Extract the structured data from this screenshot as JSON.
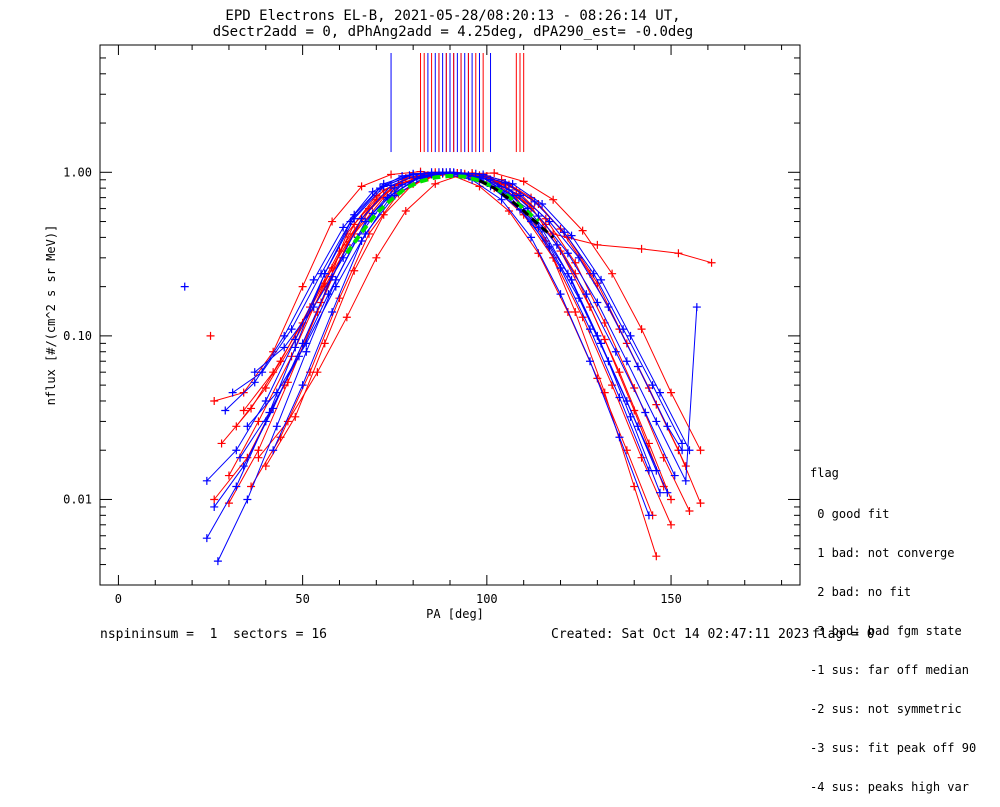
{
  "title_line1": "EPD Electrons EL-B, 2021-05-28/08:20:13 - 08:26:14 UT,",
  "title_line2": "dSectr2add = 0, dPhAng2add = 4.25deg, dPA290_est=  -0.0deg",
  "legend": {
    "title": "flag",
    "items": [
      " 0 good fit",
      " 1 bad: not converge",
      " 2 bad: no fit",
      " 3 bad: bad fgm state",
      "-1 sus: far off median",
      "-2 sus: not symmetric",
      "-3 sus: fit peak off 90",
      "-4 sus: peaks high var"
    ]
  },
  "footer": {
    "left": "nspininsum =  1  sectors = 16",
    "created": "Created: Sat Oct 14 02:47:11 2023",
    "flag": "flag = 0"
  },
  "colors": {
    "red": "#ff0000",
    "blue": "#0000ff",
    "green": "#00e000",
    "black": "#000000"
  },
  "chart_data": {
    "type": "line",
    "xlabel": "PA [deg]",
    "ylabel": "nflux [#/(cm^2 s sr MeV)]",
    "xlim": [
      -5,
      185
    ],
    "ylim": [
      0.003,
      6
    ],
    "yscale": "log",
    "xticks": [
      0,
      50,
      100,
      150
    ],
    "xtick_labels": [
      "0",
      "50",
      "100",
      "150"
    ],
    "yticks": [
      0.01,
      0.1,
      1.0
    ],
    "ytick_labels": [
      "0.01",
      "0.10",
      "1.00"
    ],
    "series": [
      {
        "color": "red",
        "x": [
          26,
          35,
          45,
          55,
          62,
          70,
          78,
          86,
          93,
          100,
          108,
          116,
          124,
          132,
          140,
          146
        ],
        "y": [
          0.01,
          0.018,
          0.05,
          0.16,
          0.42,
          0.72,
          0.92,
          0.97,
          0.98,
          0.93,
          0.7,
          0.38,
          0.14,
          0.045,
          0.012,
          0.0045
        ]
      },
      {
        "color": "red",
        "x": [
          30,
          38,
          47,
          56,
          64,
          72,
          80,
          88,
          96,
          104,
          112,
          120,
          128,
          136,
          144,
          150
        ],
        "y": [
          0.014,
          0.03,
          0.075,
          0.21,
          0.48,
          0.78,
          0.94,
          1.0,
          0.97,
          0.86,
          0.62,
          0.33,
          0.15,
          0.06,
          0.022,
          0.01
        ]
      },
      {
        "color": "red",
        "x": [
          28,
          36,
          44,
          52,
          60,
          68,
          76,
          84,
          92,
          100,
          108,
          116,
          124,
          132,
          140,
          148
        ],
        "y": [
          0.022,
          0.036,
          0.07,
          0.15,
          0.33,
          0.6,
          0.85,
          0.96,
          0.99,
          0.92,
          0.74,
          0.48,
          0.24,
          0.095,
          0.035,
          0.012
        ]
      },
      {
        "color": "red",
        "x": [
          34,
          42,
          50,
          58,
          66,
          74,
          82,
          90,
          98,
          106,
          114,
          122,
          130,
          138,
          146,
          154
        ],
        "y": [
          0.035,
          0.06,
          0.12,
          0.26,
          0.52,
          0.8,
          0.95,
          1.0,
          0.96,
          0.84,
          0.64,
          0.4,
          0.21,
          0.09,
          0.038,
          0.016
        ]
      },
      {
        "color": "red",
        "x": [
          40,
          48,
          56,
          64,
          72,
          80,
          88,
          96,
          104,
          112,
          120,
          128,
          136,
          144,
          152,
          158
        ],
        "y": [
          0.016,
          0.032,
          0.09,
          0.25,
          0.55,
          0.85,
          0.98,
          0.99,
          0.9,
          0.7,
          0.45,
          0.24,
          0.11,
          0.048,
          0.02,
          0.0095
        ]
      },
      {
        "color": "red",
        "x": [
          32,
          40,
          48,
          56,
          64,
          72,
          80,
          88,
          96,
          104,
          112,
          118,
          130,
          142,
          152,
          161
        ],
        "y": [
          0.028,
          0.048,
          0.095,
          0.2,
          0.42,
          0.7,
          0.92,
          0.99,
          0.97,
          0.85,
          0.6,
          0.42,
          0.36,
          0.34,
          0.32,
          0.28
        ]
      },
      {
        "color": "red",
        "x": [
          36,
          44,
          52,
          60,
          68,
          76,
          84,
          92,
          100,
          108,
          116,
          124,
          132,
          140,
          148,
          155
        ],
        "y": [
          0.012,
          0.024,
          0.06,
          0.17,
          0.42,
          0.74,
          0.93,
          0.99,
          0.95,
          0.78,
          0.52,
          0.28,
          0.12,
          0.048,
          0.018,
          0.0085
        ]
      },
      {
        "color": "red",
        "x": [
          26,
          34,
          42,
          50,
          58,
          66,
          74,
          82,
          90,
          98,
          106,
          114,
          122,
          130,
          138,
          145
        ],
        "y": [
          0.04,
          0.045,
          0.08,
          0.2,
          0.5,
          0.82,
          0.97,
          1.01,
          0.97,
          0.82,
          0.58,
          0.32,
          0.14,
          0.055,
          0.02,
          0.008
        ]
      },
      {
        "color": "red",
        "x": [
          38,
          46,
          54,
          62,
          70,
          78,
          86,
          94,
          102,
          110,
          118,
          126,
          134,
          142,
          150,
          158
        ],
        "y": [
          0.018,
          0.03,
          0.06,
          0.13,
          0.3,
          0.58,
          0.85,
          0.98,
          0.99,
          0.88,
          0.68,
          0.44,
          0.24,
          0.11,
          0.045,
          0.02
        ]
      },
      {
        "color": "red",
        "x": [
          30,
          38,
          46,
          54,
          62,
          70,
          78,
          86,
          94,
          102,
          110,
          118,
          126,
          134,
          142,
          150
        ],
        "y": [
          0.0095,
          0.02,
          0.052,
          0.14,
          0.36,
          0.68,
          0.92,
          1.0,
          0.96,
          0.8,
          0.55,
          0.3,
          0.13,
          0.05,
          0.018,
          0.007
        ]
      },
      {
        "color": "blue",
        "x": [
          24,
          32,
          40,
          48,
          56,
          64,
          72,
          80,
          88,
          96,
          104,
          112,
          120,
          128,
          136,
          144
        ],
        "y": [
          0.0058,
          0.012,
          0.03,
          0.085,
          0.24,
          0.55,
          0.85,
          0.98,
          0.99,
          0.9,
          0.68,
          0.4,
          0.18,
          0.07,
          0.024,
          0.008
        ]
      },
      {
        "color": "blue",
        "x": [
          27,
          35,
          43,
          51,
          59,
          67,
          75,
          83,
          91,
          99,
          107,
          115,
          123,
          131,
          139,
          147
        ],
        "y": [
          0.0042,
          0.01,
          0.028,
          0.08,
          0.22,
          0.5,
          0.8,
          0.96,
          0.99,
          0.92,
          0.72,
          0.45,
          0.22,
          0.09,
          0.032,
          0.011
        ]
      },
      {
        "color": "blue",
        "x": [
          31,
          39,
          47,
          55,
          63,
          71,
          79,
          87,
          95,
          103,
          111,
          119,
          127,
          135,
          143,
          151
        ],
        "y": [
          0.045,
          0.06,
          0.11,
          0.24,
          0.5,
          0.8,
          0.96,
          1.0,
          0.96,
          0.82,
          0.6,
          0.36,
          0.18,
          0.08,
          0.034,
          0.014
        ]
      },
      {
        "color": "blue",
        "x": [
          35,
          43,
          51,
          59,
          67,
          75,
          83,
          91,
          99,
          107,
          115,
          123,
          131,
          139,
          147,
          155
        ],
        "y": [
          0.028,
          0.045,
          0.09,
          0.2,
          0.42,
          0.72,
          0.93,
          1.0,
          0.97,
          0.85,
          0.64,
          0.41,
          0.22,
          0.1,
          0.045,
          0.02
        ]
      },
      {
        "color": "blue",
        "x": [
          24,
          32,
          40,
          48,
          56,
          64,
          72,
          80,
          88,
          96,
          104,
          112,
          120,
          128,
          136,
          144
        ],
        "y": [
          0.013,
          0.02,
          0.04,
          0.095,
          0.24,
          0.52,
          0.82,
          0.97,
          1.0,
          0.94,
          0.76,
          0.5,
          0.26,
          0.11,
          0.042,
          0.015
        ]
      },
      {
        "color": "blue",
        "x": [
          29,
          37,
          45,
          53,
          61,
          69,
          77,
          85,
          93,
          101,
          109,
          117,
          125,
          133,
          141,
          149
        ],
        "y": [
          0.035,
          0.052,
          0.1,
          0.22,
          0.46,
          0.76,
          0.95,
          1.0,
          0.96,
          0.82,
          0.59,
          0.35,
          0.17,
          0.07,
          0.028,
          0.011
        ]
      },
      {
        "color": "blue",
        "x": [
          33,
          41,
          49,
          57,
          65,
          73,
          81,
          89,
          97,
          105,
          113,
          121,
          129,
          137,
          145,
          153
        ],
        "y": [
          0.018,
          0.034,
          0.075,
          0.18,
          0.4,
          0.7,
          0.92,
          1.0,
          0.98,
          0.86,
          0.66,
          0.43,
          0.24,
          0.11,
          0.05,
          0.022
        ]
      },
      {
        "color": "blue",
        "x": [
          42,
          50,
          58,
          66,
          74,
          82,
          90,
          98,
          106,
          114,
          122,
          130,
          138,
          146,
          154,
          157
        ],
        "y": [
          0.02,
          0.05,
          0.14,
          0.38,
          0.72,
          0.94,
          1.0,
          0.94,
          0.78,
          0.54,
          0.32,
          0.16,
          0.07,
          0.03,
          0.013,
          0.15
        ]
      },
      {
        "color": "blue",
        "x": [
          26,
          34,
          42,
          50,
          58,
          66,
          74,
          82,
          90,
          98,
          106,
          114,
          122,
          130,
          138,
          146
        ],
        "y": [
          0.009,
          0.016,
          0.036,
          0.09,
          0.23,
          0.52,
          0.83,
          0.98,
          1.0,
          0.92,
          0.72,
          0.46,
          0.24,
          0.1,
          0.04,
          0.015
        ]
      },
      {
        "color": "blue",
        "x": [
          37,
          45,
          53,
          61,
          69,
          77,
          85,
          93,
          101,
          109,
          117,
          125,
          133,
          141,
          149,
          153
        ],
        "y": [
          0.06,
          0.085,
          0.15,
          0.3,
          0.56,
          0.84,
          0.97,
          0.99,
          0.9,
          0.72,
          0.5,
          0.3,
          0.15,
          0.065,
          0.028,
          0.02
        ]
      }
    ],
    "isolated_points": [
      {
        "color": "blue",
        "x": 18,
        "y": 0.2
      },
      {
        "color": "red",
        "x": 25,
        "y": 0.1
      }
    ],
    "fit_curves": [
      {
        "color": "green",
        "style": "dashed",
        "x": [
          62,
          66,
          70,
          74,
          78,
          82,
          86,
          90,
          94,
          98,
          102,
          106,
          110,
          114
        ],
        "y": [
          0.32,
          0.43,
          0.56,
          0.68,
          0.8,
          0.88,
          0.93,
          0.95,
          0.94,
          0.89,
          0.81,
          0.71,
          0.6,
          0.5
        ]
      },
      {
        "color": "black",
        "style": "dashed",
        "x": [
          98,
          102,
          106,
          110,
          114,
          118
        ],
        "y": [
          0.89,
          0.8,
          0.69,
          0.58,
          0.48,
          0.4
        ]
      }
    ],
    "peak_markers": {
      "blue": [
        74,
        84,
        86,
        87,
        88,
        89,
        90,
        91,
        92,
        93,
        94,
        95,
        96,
        98,
        101
      ],
      "red": [
        82,
        83,
        85,
        87,
        89,
        91,
        93,
        95,
        97,
        99,
        108,
        109,
        110
      ]
    }
  }
}
